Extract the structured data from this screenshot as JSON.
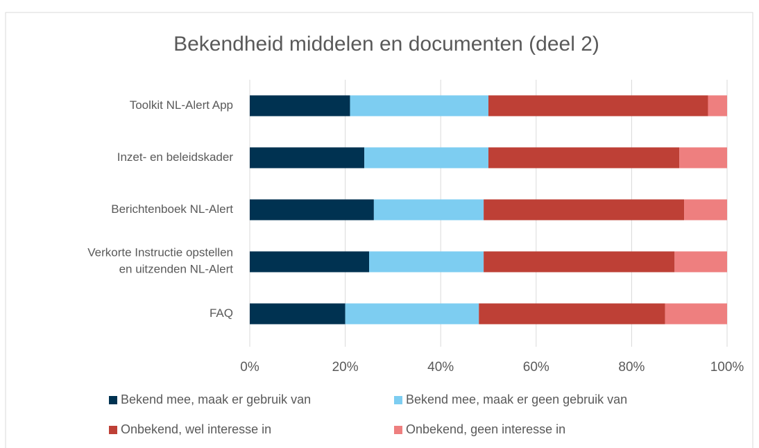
{
  "chart_data": {
    "type": "stacked_barh",
    "title": "Bekendheid middelen en documenten (deel 2)",
    "categories": [
      "Toolkit NL-Alert App",
      "Inzet- en beleidskader",
      "Berichtenboek NL-Alert",
      "Verkorte Instructie opstellen en uitzenden NL-Alert",
      "FAQ"
    ],
    "series": [
      {
        "name": "Bekend mee, maak er gebruik van",
        "color": "#003251",
        "values": [
          21,
          24,
          26,
          25,
          20
        ]
      },
      {
        "name": "Bekend mee, maak er geen gebruik van",
        "color": "#7dcdf1",
        "values": [
          29,
          26,
          23,
          24,
          28
        ]
      },
      {
        "name": "Onbekend, wel interesse in",
        "color": "#be4036",
        "values": [
          46,
          40,
          42,
          40,
          39
        ]
      },
      {
        "name": "Onbekend, geen interesse in",
        "color": "#ee7f7f",
        "values": [
          4,
          10,
          9,
          11,
          13
        ]
      }
    ],
    "xlim": [
      0,
      100
    ],
    "xticks": [
      {
        "value": 0,
        "label": "0%"
      },
      {
        "value": 20,
        "label": "20%"
      },
      {
        "value": 40,
        "label": "40%"
      },
      {
        "value": 60,
        "label": "60%"
      },
      {
        "value": 80,
        "label": "80%"
      },
      {
        "value": 100,
        "label": "100%"
      }
    ],
    "grid": true,
    "legend": "bottom"
  }
}
